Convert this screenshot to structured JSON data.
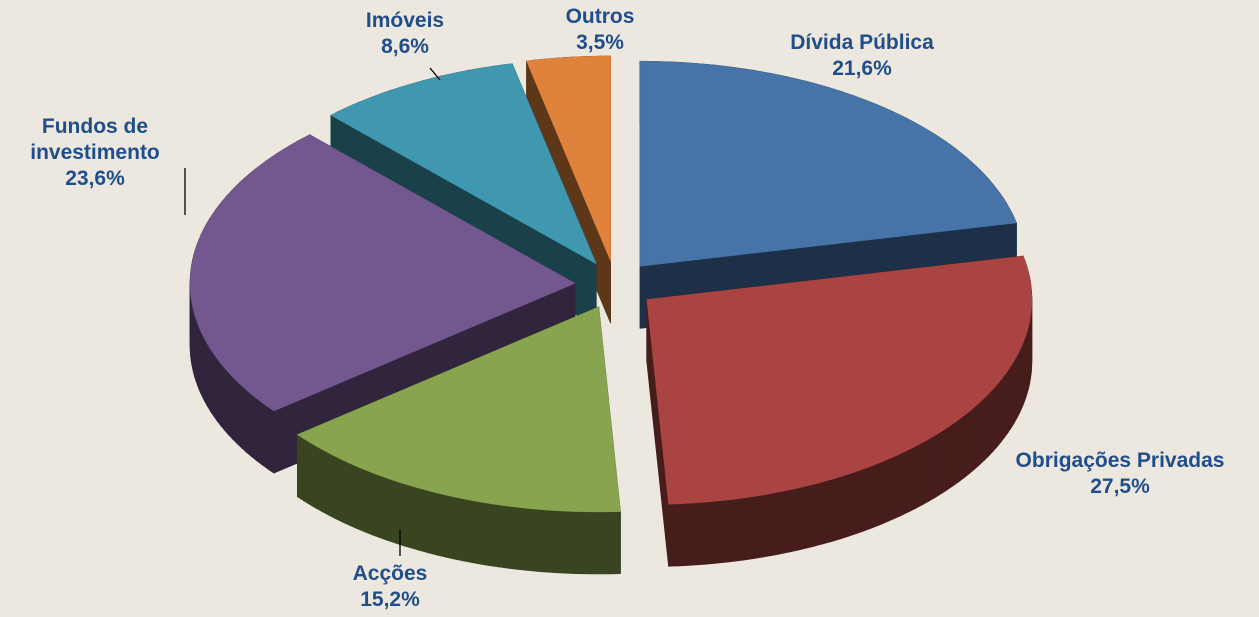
{
  "chart_data": {
    "type": "pie",
    "categories": [
      "Dívida Pública",
      "Obrigações Privadas",
      "Acções",
      "Fundos de investimento",
      "Imóveis",
      "Outros"
    ],
    "values": [
      21.6,
      27.5,
      15.2,
      23.6,
      8.6,
      3.5
    ],
    "value_labels": [
      "21,6%",
      "27,5%",
      "15,2%",
      "23,6%",
      "8,6%",
      "3,5%"
    ],
    "colors": [
      "#4673a8",
      "#aa4442",
      "#88a44e",
      "#72588f",
      "#3f98b0",
      "#df833c"
    ]
  }
}
